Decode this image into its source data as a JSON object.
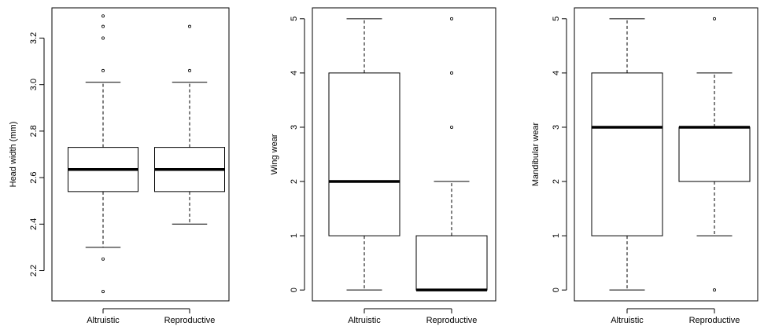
{
  "chart_data": [
    {
      "type": "box",
      "ylabel": "Head width (mm)",
      "ylim": [
        2.07,
        3.33
      ],
      "yticks": [
        "2.2",
        "2.4",
        "2.6",
        "2.8",
        "3.0",
        "3.2"
      ],
      "categories": [
        "Altruistic",
        "Reproductive"
      ],
      "boxes": [
        {
          "name": "Altruistic",
          "whisker_low": 2.3,
          "q1": 2.54,
          "median": 2.635,
          "q3": 2.73,
          "whisker_high": 3.01,
          "outliers": [
            2.11,
            2.25,
            3.06,
            3.2,
            3.25,
            3.295
          ]
        },
        {
          "name": "Reproductive",
          "whisker_low": 2.4,
          "q1": 2.54,
          "median": 2.635,
          "q3": 2.73,
          "whisker_high": 3.01,
          "outliers": [
            3.06,
            3.25
          ]
        }
      ]
    },
    {
      "type": "box",
      "ylabel": "Wing wear",
      "ylim": [
        -0.2,
        5.2
      ],
      "yticks": [
        "0",
        "1",
        "2",
        "3",
        "4",
        "5"
      ],
      "categories": [
        "Altruistic",
        "Reproductive"
      ],
      "boxes": [
        {
          "name": "Altruistic",
          "whisker_low": 0,
          "q1": 1,
          "median": 2,
          "q3": 4,
          "whisker_high": 5,
          "outliers": []
        },
        {
          "name": "Reproductive",
          "whisker_low": 0,
          "q1": 0,
          "median": 0,
          "q3": 1,
          "whisker_high": 2,
          "outliers": [
            3,
            4,
            5
          ]
        }
      ]
    },
    {
      "type": "box",
      "ylabel": "Mandibular wear",
      "ylim": [
        -0.2,
        5.2
      ],
      "yticks": [
        "0",
        "1",
        "2",
        "3",
        "4",
        "5"
      ],
      "categories": [
        "Altruistic",
        "Reproductive"
      ],
      "boxes": [
        {
          "name": "Altruistic",
          "whisker_low": 0,
          "q1": 1,
          "median": 3,
          "q3": 4,
          "whisker_high": 5,
          "outliers": []
        },
        {
          "name": "Reproductive",
          "whisker_low": 1,
          "q1": 2,
          "median": 3,
          "q3": 3,
          "whisker_high": 4,
          "outliers": [
            0,
            5
          ]
        }
      ]
    }
  ]
}
